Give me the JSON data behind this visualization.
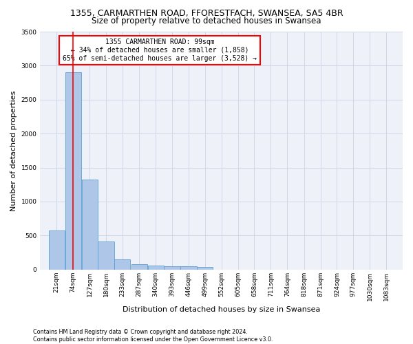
{
  "title": "1355, CARMARTHEN ROAD, FFORESTFACH, SWANSEA, SA5 4BR",
  "subtitle": "Size of property relative to detached houses in Swansea",
  "xlabel": "Distribution of detached houses by size in Swansea",
  "ylabel": "Number of detached properties",
  "bin_labels": [
    "21sqm",
    "74sqm",
    "127sqm",
    "180sqm",
    "233sqm",
    "287sqm",
    "340sqm",
    "393sqm",
    "446sqm",
    "499sqm",
    "552sqm",
    "605sqm",
    "658sqm",
    "711sqm",
    "764sqm",
    "818sqm",
    "871sqm",
    "924sqm",
    "977sqm",
    "1030sqm",
    "1083sqm"
  ],
  "bin_edges": [
    21,
    74,
    127,
    180,
    233,
    287,
    340,
    393,
    446,
    499,
    552,
    605,
    658,
    711,
    764,
    818,
    871,
    924,
    977,
    1030,
    1083
  ],
  "bar_heights": [
    570,
    2900,
    1320,
    410,
    150,
    80,
    60,
    50,
    45,
    35,
    0,
    0,
    0,
    0,
    0,
    0,
    0,
    0,
    0,
    0
  ],
  "bar_color": "#aec6e8",
  "bar_edge_color": "#5a9fd4",
  "red_line_x": 99,
  "annotation_box_text": "1355 CARMARTHEN ROAD: 99sqm\n← 34% of detached houses are smaller (1,858)\n65% of semi-detached houses are larger (3,528) →",
  "annotation_box_color": "#ff0000",
  "ylim": [
    0,
    3500
  ],
  "yticks": [
    0,
    500,
    1000,
    1500,
    2000,
    2500,
    3000,
    3500
  ],
  "grid_color": "#d0d8e8",
  "bg_color": "#eef2f8",
  "footer_line1": "Contains HM Land Registry data © Crown copyright and database right 2024.",
  "footer_line2": "Contains public sector information licensed under the Open Government Licence v3.0.",
  "title_fontsize": 9,
  "subtitle_fontsize": 8.5,
  "annotation_fontsize": 7,
  "ylabel_fontsize": 8,
  "xlabel_fontsize": 8,
  "tick_fontsize": 6.5,
  "footer_fontsize": 5.8
}
